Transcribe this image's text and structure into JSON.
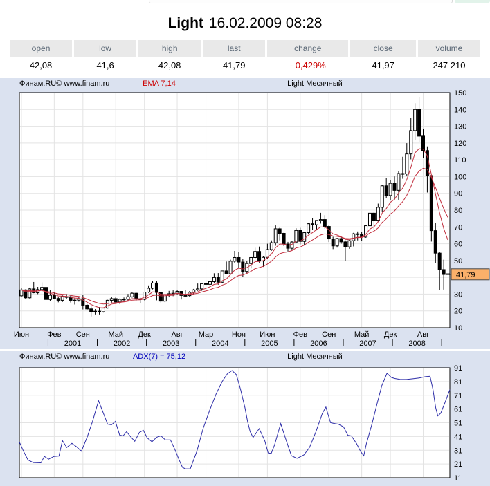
{
  "title": {
    "symbol": "Light",
    "datetime": "16.02.2009 08:28"
  },
  "quote_table": {
    "headers": [
      "open",
      "low",
      "high",
      "last",
      "change",
      "close",
      "volume"
    ],
    "values": [
      "42,08",
      "41,6",
      "42,08",
      "41,79",
      "- 0,429%",
      "41,97",
      "247 210"
    ],
    "change_is_negative": true
  },
  "charts": {
    "main": {
      "branding": "Финам.RU©  www.finam.ru",
      "overlay_label": "EMA 7,14",
      "series_label": "Light Месячный",
      "price_marker_label": "41,79"
    },
    "adx": {
      "branding": "Финам.RU©  www.finam.ru",
      "indicator_label": "ADX(7) = 75,12",
      "series_label": "Light Месячный"
    }
  },
  "palette": {
    "panel_bg": "#dbe2f0",
    "plot_bg": "#ffffff",
    "plot_border": "#000000",
    "grid": "#e3e3e3",
    "candle_up_fill": "#ffffff",
    "candle_down_fill": "#000000",
    "candle_stroke": "#000000",
    "ema_line": "#c22f3e",
    "adx_line": "#2d2da8",
    "marker_bg": "#fbb06a",
    "marker_border": "#4a4a4a",
    "negative_red": "#cc0000",
    "indicator_blue": "#0000bb"
  },
  "chart_data": [
    {
      "type": "candlestick",
      "title": "Light Месячный",
      "period": "monthly",
      "x_start": "2000-06",
      "x_end": "2009-02",
      "ylim": [
        10,
        150
      ],
      "y_ticks": [
        150,
        140,
        130,
        120,
        110,
        100,
        90,
        80,
        70,
        60,
        50,
        30,
        20,
        10
      ],
      "grid": true,
      "ema_periods": [
        7,
        14
      ],
      "last_price": 41.79,
      "x_month_labels": [
        [
          "Июн",
          0
        ],
        [
          "Фев",
          8
        ],
        [
          "Сен",
          15
        ],
        [
          "Май",
          23
        ],
        [
          "Дек",
          30
        ],
        [
          "Авг",
          38
        ],
        [
          "Мар",
          45
        ],
        [
          "Ноя",
          53
        ],
        [
          "Июн",
          60
        ],
        [
          "Фев",
          68
        ],
        [
          "Сен",
          75
        ],
        [
          "Май",
          83
        ],
        [
          "Дек",
          90
        ],
        [
          "Авг",
          98
        ]
      ],
      "x_year_labels": [
        [
          "2001",
          7
        ],
        [
          "2002",
          19
        ],
        [
          "2003",
          31
        ],
        [
          "2004",
          43
        ],
        [
          "2005",
          55
        ],
        [
          "2006",
          67
        ],
        [
          "2007",
          79
        ],
        [
          "2008",
          91
        ]
      ],
      "extra_year_tick": 103,
      "candles": [
        [
          29.0,
          33.8,
          28.5,
          32.5
        ],
        [
          32.5,
          32.9,
          26.9,
          27.8
        ],
        [
          27.8,
          33.9,
          27.4,
          33.1
        ],
        [
          33.1,
          37.2,
          30.5,
          30.8
        ],
        [
          30.8,
          34.3,
          30.0,
          32.7
        ],
        [
          32.7,
          37.0,
          31.0,
          34.0
        ],
        [
          34.0,
          34.2,
          25.9,
          26.8
        ],
        [
          26.8,
          32.2,
          26.0,
          29.3
        ],
        [
          29.3,
          31.4,
          27.5,
          27.4
        ],
        [
          27.4,
          28.4,
          25.1,
          26.3
        ],
        [
          26.3,
          29.3,
          25.3,
          28.5
        ],
        [
          28.5,
          30.1,
          27.3,
          28.4
        ],
        [
          28.4,
          29.5,
          25.0,
          26.3
        ],
        [
          26.3,
          27.9,
          23.8,
          26.4
        ],
        [
          26.4,
          28.4,
          25.5,
          27.2
        ],
        [
          27.2,
          29.7,
          20.9,
          23.4
        ],
        [
          23.4,
          24.1,
          20.3,
          21.2
        ],
        [
          21.2,
          22.6,
          16.7,
          19.4
        ],
        [
          19.4,
          21.1,
          17.9,
          19.8
        ],
        [
          19.8,
          22.3,
          17.9,
          19.5
        ],
        [
          19.5,
          21.9,
          19.0,
          21.7
        ],
        [
          21.7,
          26.6,
          21.4,
          26.3
        ],
        [
          26.3,
          28.2,
          25.0,
          27.3
        ],
        [
          27.3,
          28.4,
          24.3,
          25.3
        ],
        [
          25.3,
          27.4,
          24.1,
          26.9
        ],
        [
          26.9,
          28.0,
          25.3,
          27.0
        ],
        [
          27.0,
          30.1,
          25.8,
          28.4
        ],
        [
          28.4,
          31.4,
          27.9,
          30.5
        ],
        [
          30.5,
          30.8,
          26.2,
          27.2
        ],
        [
          27.2,
          27.8,
          24.7,
          26.9
        ],
        [
          26.9,
          31.4,
          26.3,
          31.2
        ],
        [
          31.2,
          35.2,
          30.7,
          33.5
        ],
        [
          33.5,
          37.9,
          32.8,
          36.6
        ],
        [
          36.6,
          38.0,
          26.3,
          31.0
        ],
        [
          31.0,
          31.2,
          25.0,
          25.8
        ],
        [
          25.8,
          29.9,
          25.2,
          29.6
        ],
        [
          29.6,
          31.9,
          28.1,
          30.2
        ],
        [
          30.2,
          32.2,
          28.8,
          30.5
        ],
        [
          30.5,
          32.4,
          29.5,
          31.6
        ],
        [
          31.6,
          31.8,
          26.8,
          29.2
        ],
        [
          29.2,
          32.5,
          28.3,
          29.1
        ],
        [
          29.1,
          31.8,
          28.5,
          31.1
        ],
        [
          31.1,
          33.1,
          29.8,
          32.5
        ],
        [
          32.5,
          36.3,
          31.9,
          33.1
        ],
        [
          33.1,
          36.6,
          32.0,
          36.2
        ],
        [
          36.2,
          38.5,
          33.8,
          35.8
        ],
        [
          35.8,
          38.0,
          33.5,
          37.4
        ],
        [
          37.4,
          42.4,
          36.4,
          39.9
        ],
        [
          39.9,
          42.5,
          35.6,
          37.1
        ],
        [
          37.1,
          43.9,
          36.6,
          43.8
        ],
        [
          43.8,
          49.4,
          42.1,
          42.1
        ],
        [
          42.1,
          50.5,
          41.7,
          49.6
        ],
        [
          49.6,
          55.7,
          48.5,
          51.8
        ],
        [
          51.8,
          55.2,
          45.7,
          49.1
        ],
        [
          49.1,
          51.1,
          40.3,
          43.5
        ],
        [
          43.5,
          49.8,
          42.1,
          48.2
        ],
        [
          48.2,
          52.1,
          45.3,
          51.8
        ],
        [
          51.8,
          57.6,
          50.7,
          55.4
        ],
        [
          55.4,
          58.3,
          48.8,
          49.7
        ],
        [
          49.7,
          52.8,
          46.2,
          51.9
        ],
        [
          51.9,
          60.0,
          51.0,
          56.5
        ],
        [
          56.5,
          62.0,
          55.8,
          60.6
        ],
        [
          60.6,
          70.9,
          58.8,
          68.9
        ],
        [
          68.9,
          69.5,
          62.0,
          66.2
        ],
        [
          66.2,
          66.5,
          58.7,
          59.8
        ],
        [
          59.8,
          61.1,
          55.4,
          57.3
        ],
        [
          57.3,
          61.8,
          56.0,
          61.0
        ],
        [
          61.0,
          69.2,
          60.4,
          67.9
        ],
        [
          67.9,
          69.5,
          59.6,
          61.4
        ],
        [
          61.4,
          67.2,
          59.3,
          66.6
        ],
        [
          66.6,
          72.5,
          65.8,
          71.9
        ],
        [
          71.9,
          75.4,
          68.2,
          71.3
        ],
        [
          71.3,
          74.0,
          68.0,
          73.9
        ],
        [
          73.9,
          78.4,
          72.0,
          74.4
        ],
        [
          74.4,
          77.0,
          69.0,
          70.3
        ],
        [
          70.3,
          70.9,
          61.0,
          62.9
        ],
        [
          62.9,
          64.2,
          56.8,
          58.7
        ],
        [
          58.7,
          63.5,
          57.7,
          63.1
        ],
        [
          63.1,
          64.2,
          60.0,
          61.1
        ],
        [
          61.1,
          62.0,
          49.9,
          58.1
        ],
        [
          58.1,
          62.3,
          57.0,
          61.8
        ],
        [
          61.8,
          66.5,
          58.4,
          65.9
        ],
        [
          65.9,
          67.3,
          62.0,
          65.7
        ],
        [
          65.7,
          67.0,
          61.5,
          64.0
        ],
        [
          64.0,
          71.0,
          63.6,
          70.7
        ],
        [
          70.7,
          78.8,
          69.1,
          78.2
        ],
        [
          78.2,
          78.7,
          68.6,
          74.0
        ],
        [
          74.0,
          83.9,
          73.0,
          81.7
        ],
        [
          81.7,
          94.8,
          78.9,
          94.5
        ],
        [
          94.5,
          99.3,
          87.1,
          88.7
        ],
        [
          88.7,
          97.9,
          85.8,
          96.0
        ],
        [
          96.0,
          100.1,
          86.1,
          91.8
        ],
        [
          91.8,
          103.1,
          86.2,
          101.8
        ],
        [
          101.8,
          111.8,
          98.7,
          101.6
        ],
        [
          101.6,
          119.9,
          100.5,
          113.5
        ],
        [
          113.5,
          135.1,
          110.3,
          127.4
        ],
        [
          127.4,
          143.7,
          121.6,
          140.0
        ],
        [
          140.0,
          147.3,
          120.4,
          124.1
        ],
        [
          124.1,
          128.6,
          111.3,
          115.5
        ],
        [
          115.5,
          118.0,
          90.5,
          100.6
        ],
        [
          100.6,
          101.0,
          61.3,
          67.8
        ],
        [
          67.8,
          72.6,
          48.3,
          54.4
        ],
        [
          54.4,
          54.9,
          32.4,
          44.6
        ],
        [
          44.6,
          50.5,
          32.7,
          41.7
        ],
        [
          42.08,
          42.08,
          41.6,
          41.79
        ]
      ]
    },
    {
      "type": "line",
      "name": "ADX(7)",
      "current_value": 75.12,
      "ylim": [
        11,
        91
      ],
      "y_ticks": [
        91,
        81,
        71,
        61,
        51,
        41,
        31,
        21,
        11
      ],
      "grid": true,
      "points": [
        [
          0.0,
          37.0
        ],
        [
          0.01,
          30.0
        ],
        [
          0.02,
          24.0
        ],
        [
          0.032,
          22.0
        ],
        [
          0.05,
          21.8
        ],
        [
          0.058,
          26.5
        ],
        [
          0.068,
          24.5
        ],
        [
          0.08,
          26.5
        ],
        [
          0.092,
          26.8
        ],
        [
          0.1,
          38.0
        ],
        [
          0.11,
          33.0
        ],
        [
          0.122,
          36.0
        ],
        [
          0.133,
          33.5
        ],
        [
          0.144,
          30.3
        ],
        [
          0.158,
          41.0
        ],
        [
          0.17,
          52.0
        ],
        [
          0.184,
          67.0
        ],
        [
          0.195,
          58.0
        ],
        [
          0.205,
          50.0
        ],
        [
          0.214,
          49.5
        ],
        [
          0.223,
          52.0
        ],
        [
          0.233,
          42.0
        ],
        [
          0.241,
          41.5
        ],
        [
          0.249,
          44.5
        ],
        [
          0.258,
          41.0
        ],
        [
          0.268,
          37.5
        ],
        [
          0.279,
          44.0
        ],
        [
          0.288,
          45.5
        ],
        [
          0.297,
          40.0
        ],
        [
          0.308,
          37.2
        ],
        [
          0.319,
          40.5
        ],
        [
          0.329,
          41.5
        ],
        [
          0.339,
          38.5
        ],
        [
          0.351,
          38.5
        ],
        [
          0.362,
          31.0
        ],
        [
          0.371,
          24.0
        ],
        [
          0.379,
          18.5
        ],
        [
          0.386,
          17.5
        ],
        [
          0.397,
          17.5
        ],
        [
          0.412,
          30.0
        ],
        [
          0.427,
          47.0
        ],
        [
          0.442,
          60.0
        ],
        [
          0.457,
          72.0
        ],
        [
          0.471,
          81.0
        ],
        [
          0.483,
          86.5
        ],
        [
          0.494,
          89.0
        ],
        [
          0.504,
          86.0
        ],
        [
          0.514,
          75.0
        ],
        [
          0.524,
          62.0
        ],
        [
          0.53,
          52.0
        ],
        [
          0.536,
          44.6
        ],
        [
          0.543,
          40.3
        ],
        [
          0.557,
          46.7
        ],
        [
          0.57,
          38.0
        ],
        [
          0.578,
          29.0
        ],
        [
          0.585,
          28.7
        ],
        [
          0.593,
          35.0
        ],
        [
          0.607,
          50.4
        ],
        [
          0.62,
          38.0
        ],
        [
          0.632,
          27.0
        ],
        [
          0.645,
          25.1
        ],
        [
          0.661,
          27.6
        ],
        [
          0.674,
          33.0
        ],
        [
          0.689,
          44.6
        ],
        [
          0.704,
          58.0
        ],
        [
          0.712,
          62.4
        ],
        [
          0.717,
          57.0
        ],
        [
          0.723,
          51.0
        ],
        [
          0.734,
          50.3
        ],
        [
          0.741,
          50.0
        ],
        [
          0.753,
          48.0
        ],
        [
          0.763,
          41.9
        ],
        [
          0.771,
          41.5
        ],
        [
          0.783,
          36.0
        ],
        [
          0.793,
          30.0
        ],
        [
          0.8,
          27.0
        ],
        [
          0.806,
          35.5
        ],
        [
          0.819,
          50.0
        ],
        [
          0.831,
          65.0
        ],
        [
          0.842,
          78.0
        ],
        [
          0.854,
          87.0
        ],
        [
          0.864,
          84.0
        ],
        [
          0.872,
          83.2
        ],
        [
          0.884,
          82.6
        ],
        [
          0.899,
          82.5
        ],
        [
          0.914,
          83.0
        ],
        [
          0.929,
          83.6
        ],
        [
          0.943,
          84.5
        ],
        [
          0.954,
          84.8
        ],
        [
          0.961,
          75.0
        ],
        [
          0.967,
          62.0
        ],
        [
          0.972,
          56.0
        ],
        [
          0.979,
          58.0
        ],
        [
          0.989,
          66.0
        ],
        [
          1.0,
          75.1
        ]
      ]
    }
  ]
}
